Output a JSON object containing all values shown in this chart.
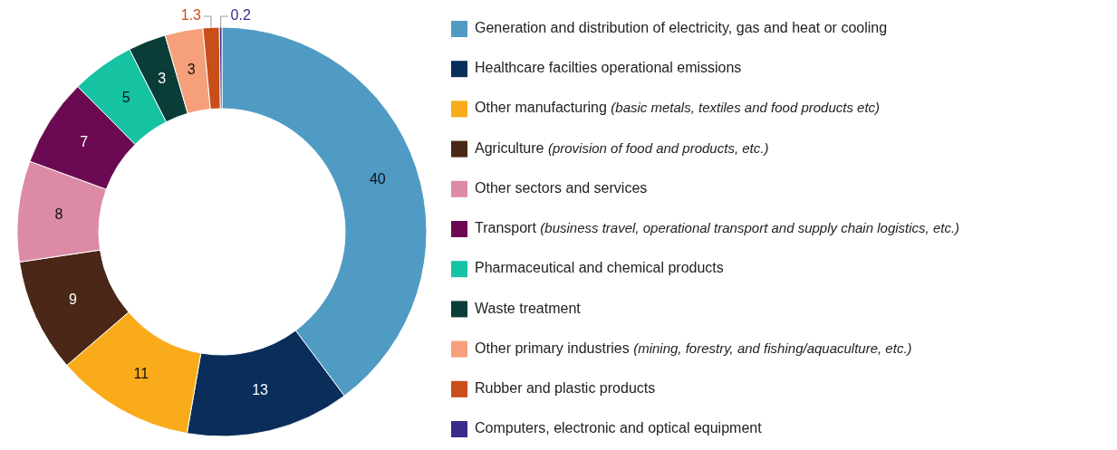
{
  "chart_data": {
    "type": "donut",
    "categories": [
      "Generation and distribution of electricity, gas and heat or cooling",
      "Healthcare facilties operational emissions",
      "Other manufacturing (basic metals, textiles and food products etc)",
      "Agriculture (provision of food and products, etc.)",
      "Other sectors and services",
      "Transport (business travel, operational transport and supply chain logistics, etc.)",
      "Pharmaceutical and chemical products",
      "Waste treatment",
      "Other primary industries (mining, forestry, and fishing/aquaculture, etc.)",
      "Rubber and plastic products",
      "Computers, electronic and optical equipment"
    ],
    "values": [
      40,
      13,
      11,
      9,
      8,
      7,
      5,
      3,
      3,
      1.3,
      0.2
    ],
    "colors": [
      "#4f9bc4",
      "#0a2d5a",
      "#f9ab1a",
      "#4a2716",
      "#dd8aa5",
      "#6b0a52",
      "#15c3a3",
      "#0b3d38",
      "#f5a07a",
      "#c84e1a",
      "#3a2a8a"
    ],
    "data_labels": true,
    "legend": "right"
  }
}
